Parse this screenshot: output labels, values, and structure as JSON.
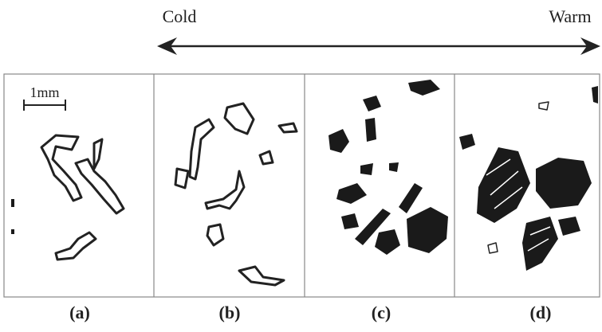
{
  "header": {
    "left_label": "Cold",
    "right_label": "Warm"
  },
  "scale_bar": "1mm",
  "panels": [
    {
      "label": "(a)"
    },
    {
      "label": "(b)"
    },
    {
      "label": "(c)"
    },
    {
      "label": "(d)"
    }
  ]
}
